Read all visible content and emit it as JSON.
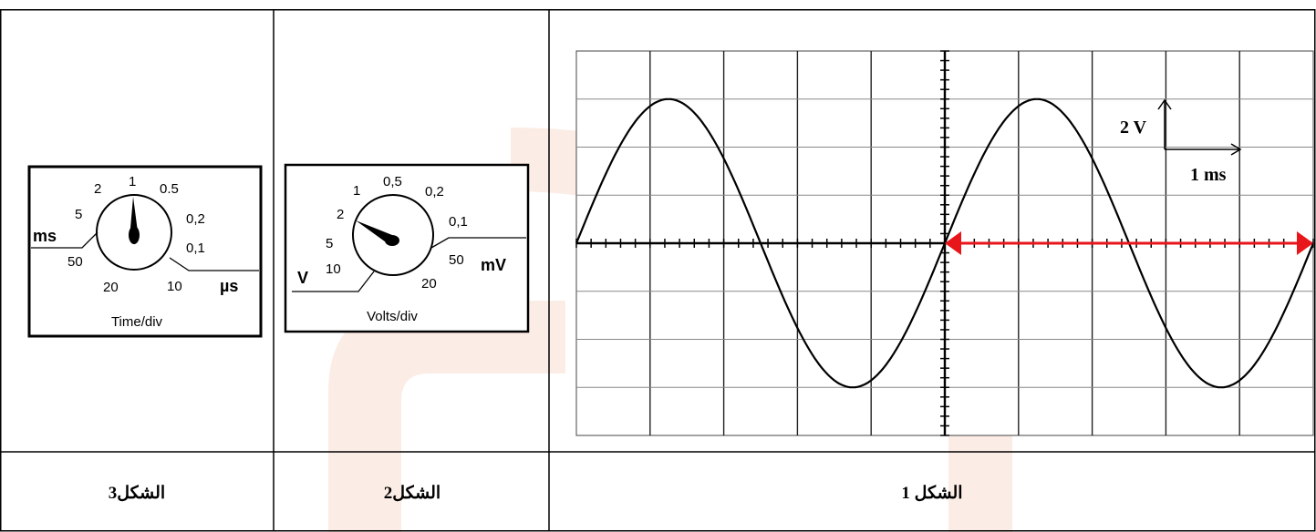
{
  "figure1": {
    "caption": "الشكل 1",
    "scale": {
      "vertical": "2 V",
      "horizontal": "1 ms"
    },
    "screen": {
      "divisions_x": 10,
      "divisions_y": 8,
      "subdivisions": 5
    },
    "signal": {
      "type": "sine",
      "amplitude_div": 3,
      "period_div": 5,
      "phase_start": "zero-rising"
    },
    "marker": {
      "type": "double-arrow",
      "color": "#e8161b",
      "from_div_x": 5,
      "to_div_x": 10
    }
  },
  "figure2": {
    "caption": "الشكل2",
    "title": "Volts/div",
    "left_unit": "V",
    "right_unit": "mV",
    "labels": [
      "10",
      "5",
      "2",
      "1",
      "0,5",
      "0,2",
      "0,1",
      "50",
      "20"
    ],
    "selected": "2"
  },
  "figure3": {
    "caption": "الشكل3",
    "title": "Time/div",
    "left_unit": "ms",
    "right_unit": "µs",
    "labels": [
      "50",
      "5",
      "2",
      "1",
      "0.5",
      "0,2",
      "0,1",
      "10",
      "20"
    ],
    "selected": "1"
  },
  "colors": {
    "watermark": "#fbe6de",
    "arrow": "#e8161b"
  }
}
